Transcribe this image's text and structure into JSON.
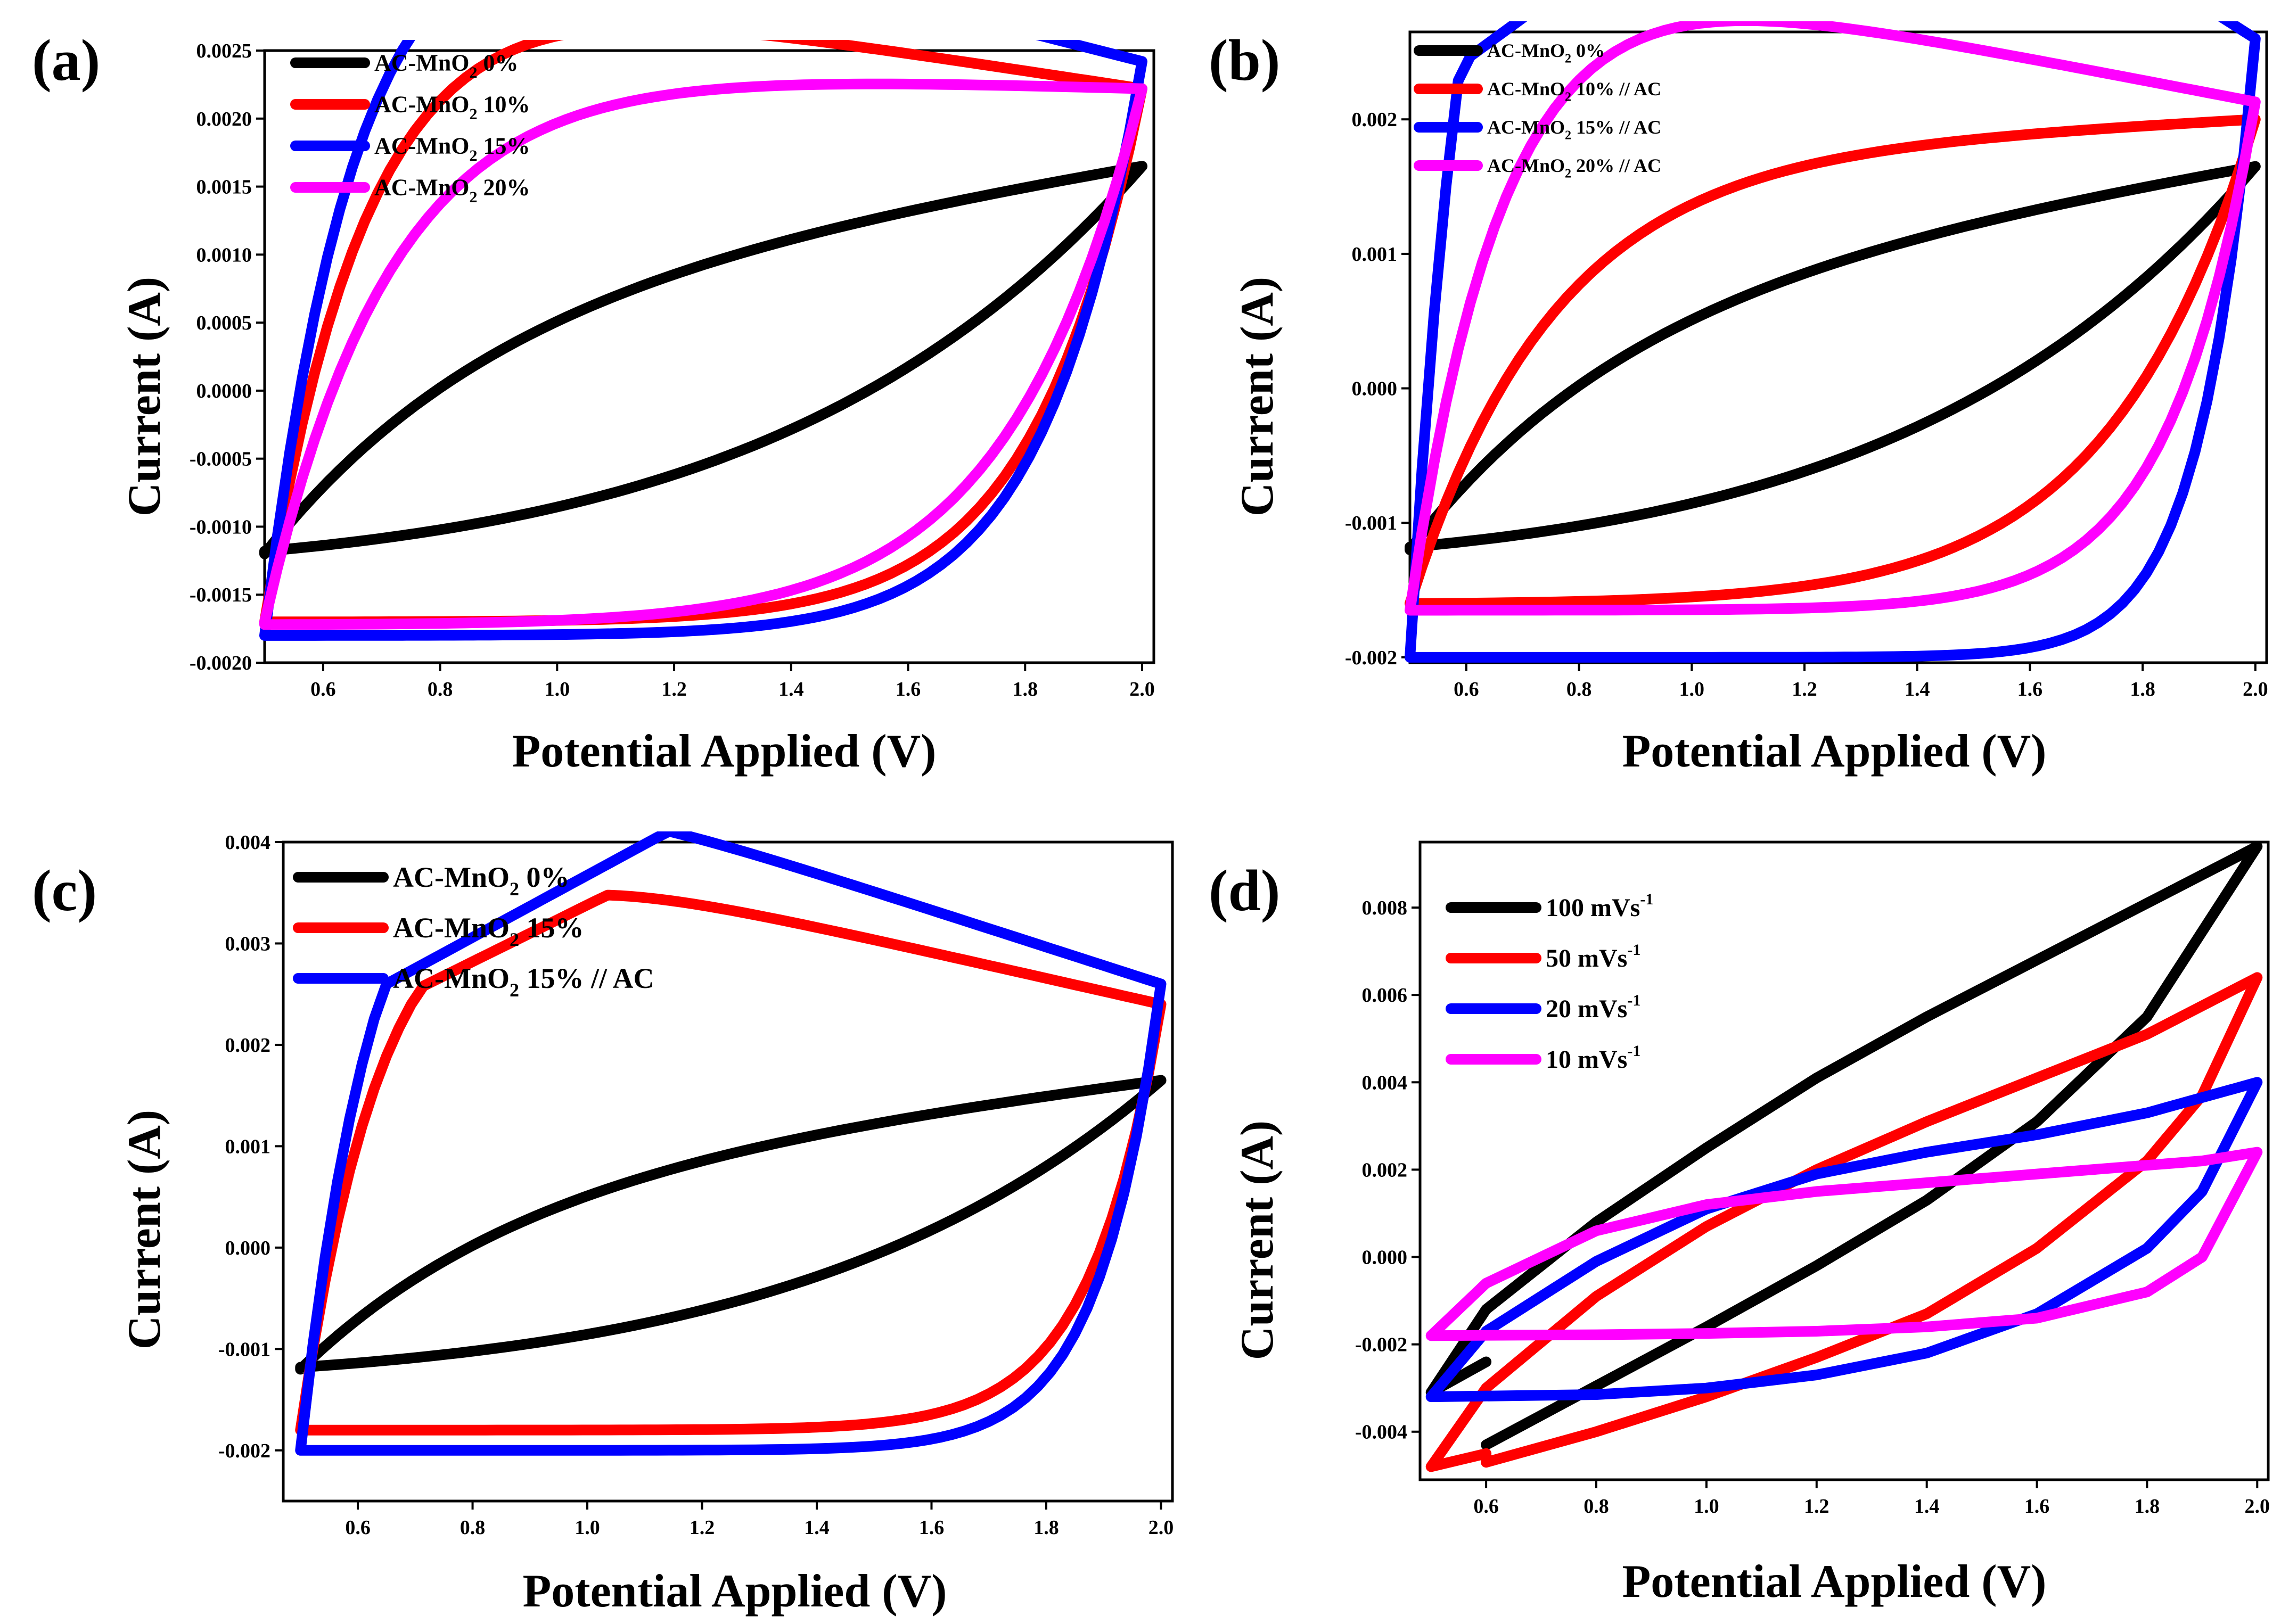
{
  "chart_data": [
    {
      "type": "line",
      "panel_label": "(a)",
      "xlabel": "Potential Applied (V)",
      "ylabel": "Current (A)",
      "xlim": [
        0.5,
        2.02
      ],
      "ylim": [
        -0.002,
        0.0025
      ],
      "xticks": [
        0.6,
        0.8,
        1.0,
        1.2,
        1.4,
        1.6,
        1.8,
        2.0
      ],
      "xtick_labels": [
        "0.6",
        "0.8",
        "1.0",
        "1.2",
        "1.4",
        "1.6",
        "1.8",
        "2.0"
      ],
      "yticks": [
        -0.002,
        -0.0015,
        -0.001,
        -0.0005,
        0.0,
        0.0005,
        0.001,
        0.0015,
        0.002,
        0.0025
      ],
      "ytick_labels": [
        "-0.0020",
        "-0.0015",
        "-0.0010",
        "-0.0005",
        "0.0000",
        "0.0005",
        "0.0010",
        "0.0015",
        "0.0020",
        "0.0025"
      ],
      "legend_position": "top-left",
      "series": [
        {
          "name": "AC-MnO2 0%",
          "label_main": "AC-MnO",
          "label_sub": "2",
          "label_tail": " 0%",
          "color": "#000000",
          "ylow": -0.00118,
          "yhigh": 0.00165,
          "ystart": -0.0012,
          "sharp": 3.0,
          "lowshape": 1.0
        },
        {
          "name": "AC-MnO2 10%",
          "label_main": "AC-MnO",
          "label_sub": "2",
          "label_tail": " 10%",
          "color": "#ff0000",
          "ylow": -0.0017,
          "yhigh": 0.00222,
          "ystart": -0.0017,
          "sharp": 7.5,
          "lowshape": 4.5
        },
        {
          "name": "AC-MnO2 15%",
          "label_main": "AC-MnO",
          "label_sub": "2",
          "label_tail": " 15%",
          "color": "#0000ff",
          "ylow": -0.0018,
          "yhigh": 0.00242,
          "ystart": -0.0018,
          "sharp": 8.5,
          "lowshape": 5.0
        },
        {
          "name": "AC-MnO2 20%",
          "label_main": "AC-MnO",
          "label_sub": "2",
          "label_tail": " 20%",
          "color": "#ff00ff",
          "ylow": -0.00172,
          "yhigh": 0.00222,
          "ystart": -0.0017,
          "sharp": 6.0,
          "lowshape": 3.5
        }
      ]
    },
    {
      "type": "line",
      "panel_label": "(b)",
      "xlabel": "Potential Applied (V)",
      "ylabel": "Current (A)",
      "xlim": [
        0.5,
        2.02
      ],
      "ylim": [
        -0.00204,
        0.00265
      ],
      "xticks": [
        0.6,
        0.8,
        1.0,
        1.2,
        1.4,
        1.6,
        1.8,
        2.0
      ],
      "xtick_labels": [
        "0.6",
        "0.8",
        "1.0",
        "1.2",
        "1.4",
        "1.6",
        "1.8",
        "2.0"
      ],
      "yticks": [
        -0.002,
        -0.001,
        0.0,
        0.001,
        0.002
      ],
      "ytick_labels": [
        "-0.002",
        "-0.001",
        "0.000",
        "0.001",
        "0.002"
      ],
      "legend_position": "top-left",
      "series": [
        {
          "name": "AC-MnO2 0%",
          "label_main": "AC-MnO",
          "label_sub": "2",
          "label_tail": " 0%",
          "color": "#000000",
          "ylow": -0.00118,
          "yhigh": 0.00165,
          "ystart": -0.0012,
          "sharp": 3.0,
          "lowshape": 1.0
        },
        {
          "name": "AC-MnO2 10% // AC",
          "label_main": "AC-MnO",
          "label_sub": "2",
          "label_tail": " 10% // AC",
          "color": "#ff0000",
          "ylow": -0.0016,
          "yhigh": 0.002,
          "ystart": -0.0016,
          "sharp": 5.0,
          "lowshape": 3.0
        },
        {
          "name": "AC-MnO2 15% // AC",
          "label_main": "AC-MnO",
          "label_sub": "2",
          "label_tail": " 15% // AC",
          "color": "#0000ff",
          "ylow": -0.002,
          "yhigh": 0.0026,
          "ystart": -0.002,
          "sharp": 12.0,
          "lowshape": 9.0
        },
        {
          "name": "AC-MnO2 20% // AC",
          "label_main": "AC-MnO",
          "label_sub": "2",
          "label_tail": " 20% // AC",
          "color": "#ff00ff",
          "ylow": -0.00165,
          "yhigh": 0.00213,
          "ystart": -0.00165,
          "sharp": 8.0,
          "lowshape": 5.5
        }
      ]
    },
    {
      "type": "line",
      "panel_label": "(c)",
      "xlabel": "Potential Applied (V)",
      "ylabel": "Current (A)",
      "xlim": [
        0.47,
        2.02
      ],
      "ylim": [
        -0.0025,
        0.004
      ],
      "xticks": [
        0.6,
        0.8,
        1.0,
        1.2,
        1.4,
        1.6,
        1.8,
        2.0
      ],
      "xtick_labels": [
        "0.6",
        "0.8",
        "1.0",
        "1.2",
        "1.4",
        "1.6",
        "1.8",
        "2.0"
      ],
      "yticks": [
        -0.002,
        -0.001,
        0.0,
        0.001,
        0.002,
        0.003,
        0.004
      ],
      "ytick_labels": [
        "-0.002",
        "-0.001",
        "0.000",
        "0.001",
        "0.002",
        "0.003",
        "0.004"
      ],
      "legend_position": "top-left",
      "series": [
        {
          "name": "AC-MnO2 0%",
          "label_main": "AC-MnO",
          "label_sub": "2",
          "label_tail": " 0%",
          "color": "#000000",
          "ylow": -0.00118,
          "yhigh": 0.00165,
          "ystart": -0.0012,
          "sharp": 3.0,
          "lowshape": 1.0
        },
        {
          "name": "AC-MnO2 15%",
          "label_main": "AC-MnO",
          "label_sub": "2",
          "label_tail": " 15%",
          "color": "#ff0000",
          "ylow": -0.0018,
          "yhigh": 0.0024,
          "ystart": -0.0018,
          "sharp": 9.0,
          "lowshape": 7.0
        },
        {
          "name": "AC-MnO2 15% // AC",
          "label_main": "AC-MnO",
          "label_sub": "2",
          "label_tail": " 15% // AC",
          "color": "#0000ff",
          "ylow": -0.002,
          "yhigh": 0.0026,
          "ystart": -0.002,
          "sharp": 10.0,
          "lowshape": 8.0
        }
      ]
    },
    {
      "type": "line",
      "panel_label": "(d)",
      "xlabel": "Potential Applied (V)",
      "ylabel": "Current (A)",
      "xlim": [
        0.48,
        2.02
      ],
      "ylim": [
        -0.0051,
        0.0095
      ],
      "xticks": [
        0.6,
        0.8,
        1.0,
        1.2,
        1.4,
        1.6,
        1.8,
        2.0
      ],
      "xtick_labels": [
        "0.6",
        "0.8",
        "1.0",
        "1.2",
        "1.4",
        "1.6",
        "1.8",
        "2.0"
      ],
      "yticks": [
        -0.004,
        -0.002,
        0.0,
        0.002,
        0.004,
        0.006,
        0.008
      ],
      "ytick_labels": [
        "-0.004",
        "-0.002",
        "0.000",
        "0.002",
        "0.004",
        "0.006",
        "0.008"
      ],
      "legend_position": "top-left",
      "series": [
        {
          "name": "100 mVs-1",
          "label_main": "100 mVs",
          "label_sup": "-1",
          "color": "#000000",
          "mode": "rate",
          "points": [
            [
              0.6,
              -0.0043
            ],
            [
              0.8,
              -0.00295
            ],
            [
              1.0,
              -0.0016
            ],
            [
              1.2,
              -0.0002
            ],
            [
              1.4,
              0.0013
            ],
            [
              1.6,
              0.0031
            ],
            [
              1.8,
              0.0055
            ],
            [
              2.0,
              0.0094
            ],
            [
              1.8,
              0.0081
            ],
            [
              1.6,
              0.0068
            ],
            [
              1.4,
              0.0055
            ],
            [
              1.2,
              0.0041
            ],
            [
              1.0,
              0.0025
            ],
            [
              0.8,
              0.0008
            ],
            [
              0.6,
              -0.0012
            ],
            [
              0.5,
              -0.0031
            ],
            [
              0.6,
              -0.0024
            ]
          ]
        },
        {
          "name": "50 mVs-1",
          "label_main": "50 mVs",
          "label_sup": "-1",
          "color": "#ff0000",
          "mode": "rate",
          "points": [
            [
              0.6,
              -0.0047
            ],
            [
              0.8,
              -0.004
            ],
            [
              1.0,
              -0.0032
            ],
            [
              1.2,
              -0.0023
            ],
            [
              1.4,
              -0.0013
            ],
            [
              1.6,
              0.0002
            ],
            [
              1.8,
              0.0022
            ],
            [
              1.9,
              0.0037
            ],
            [
              2.0,
              0.0064
            ],
            [
              1.8,
              0.0051
            ],
            [
              1.6,
              0.0041
            ],
            [
              1.4,
              0.0031
            ],
            [
              1.2,
              0.002
            ],
            [
              1.0,
              0.0007
            ],
            [
              0.8,
              -0.0009
            ],
            [
              0.6,
              -0.003
            ],
            [
              0.5,
              -0.0048
            ],
            [
              0.6,
              -0.0045
            ]
          ]
        },
        {
          "name": "20 mVs-1",
          "label_main": "20 mVs",
          "label_sup": "-1",
          "color": "#0000ff",
          "mode": "rate",
          "points": [
            [
              0.5,
              -0.0032
            ],
            [
              0.8,
              -0.00315
            ],
            [
              1.0,
              -0.003
            ],
            [
              1.2,
              -0.0027
            ],
            [
              1.4,
              -0.0022
            ],
            [
              1.6,
              -0.0013
            ],
            [
              1.8,
              0.0002
            ],
            [
              1.9,
              0.0015
            ],
            [
              2.0,
              0.004
            ],
            [
              1.8,
              0.0033
            ],
            [
              1.6,
              0.0028
            ],
            [
              1.4,
              0.0024
            ],
            [
              1.2,
              0.0019
            ],
            [
              1.0,
              0.0011
            ],
            [
              0.8,
              -0.0001
            ],
            [
              0.6,
              -0.0017
            ],
            [
              0.5,
              -0.0032
            ]
          ]
        },
        {
          "name": "10 mVs-1",
          "label_main": "10 mVs",
          "label_sup": "-1",
          "color": "#ff00ff",
          "mode": "rate",
          "points": [
            [
              0.5,
              -0.0018
            ],
            [
              0.8,
              -0.00178
            ],
            [
              1.0,
              -0.00175
            ],
            [
              1.2,
              -0.0017
            ],
            [
              1.4,
              -0.0016
            ],
            [
              1.6,
              -0.0014
            ],
            [
              1.8,
              -0.0008
            ],
            [
              1.9,
              0.0
            ],
            [
              2.0,
              0.0024
            ],
            [
              1.9,
              0.0022
            ],
            [
              1.8,
              0.0021
            ],
            [
              1.6,
              0.0019
            ],
            [
              1.4,
              0.0017
            ],
            [
              1.2,
              0.0015
            ],
            [
              1.0,
              0.0012
            ],
            [
              0.8,
              0.0006
            ],
            [
              0.6,
              -0.0006
            ],
            [
              0.5,
              -0.0018
            ]
          ]
        }
      ]
    }
  ]
}
